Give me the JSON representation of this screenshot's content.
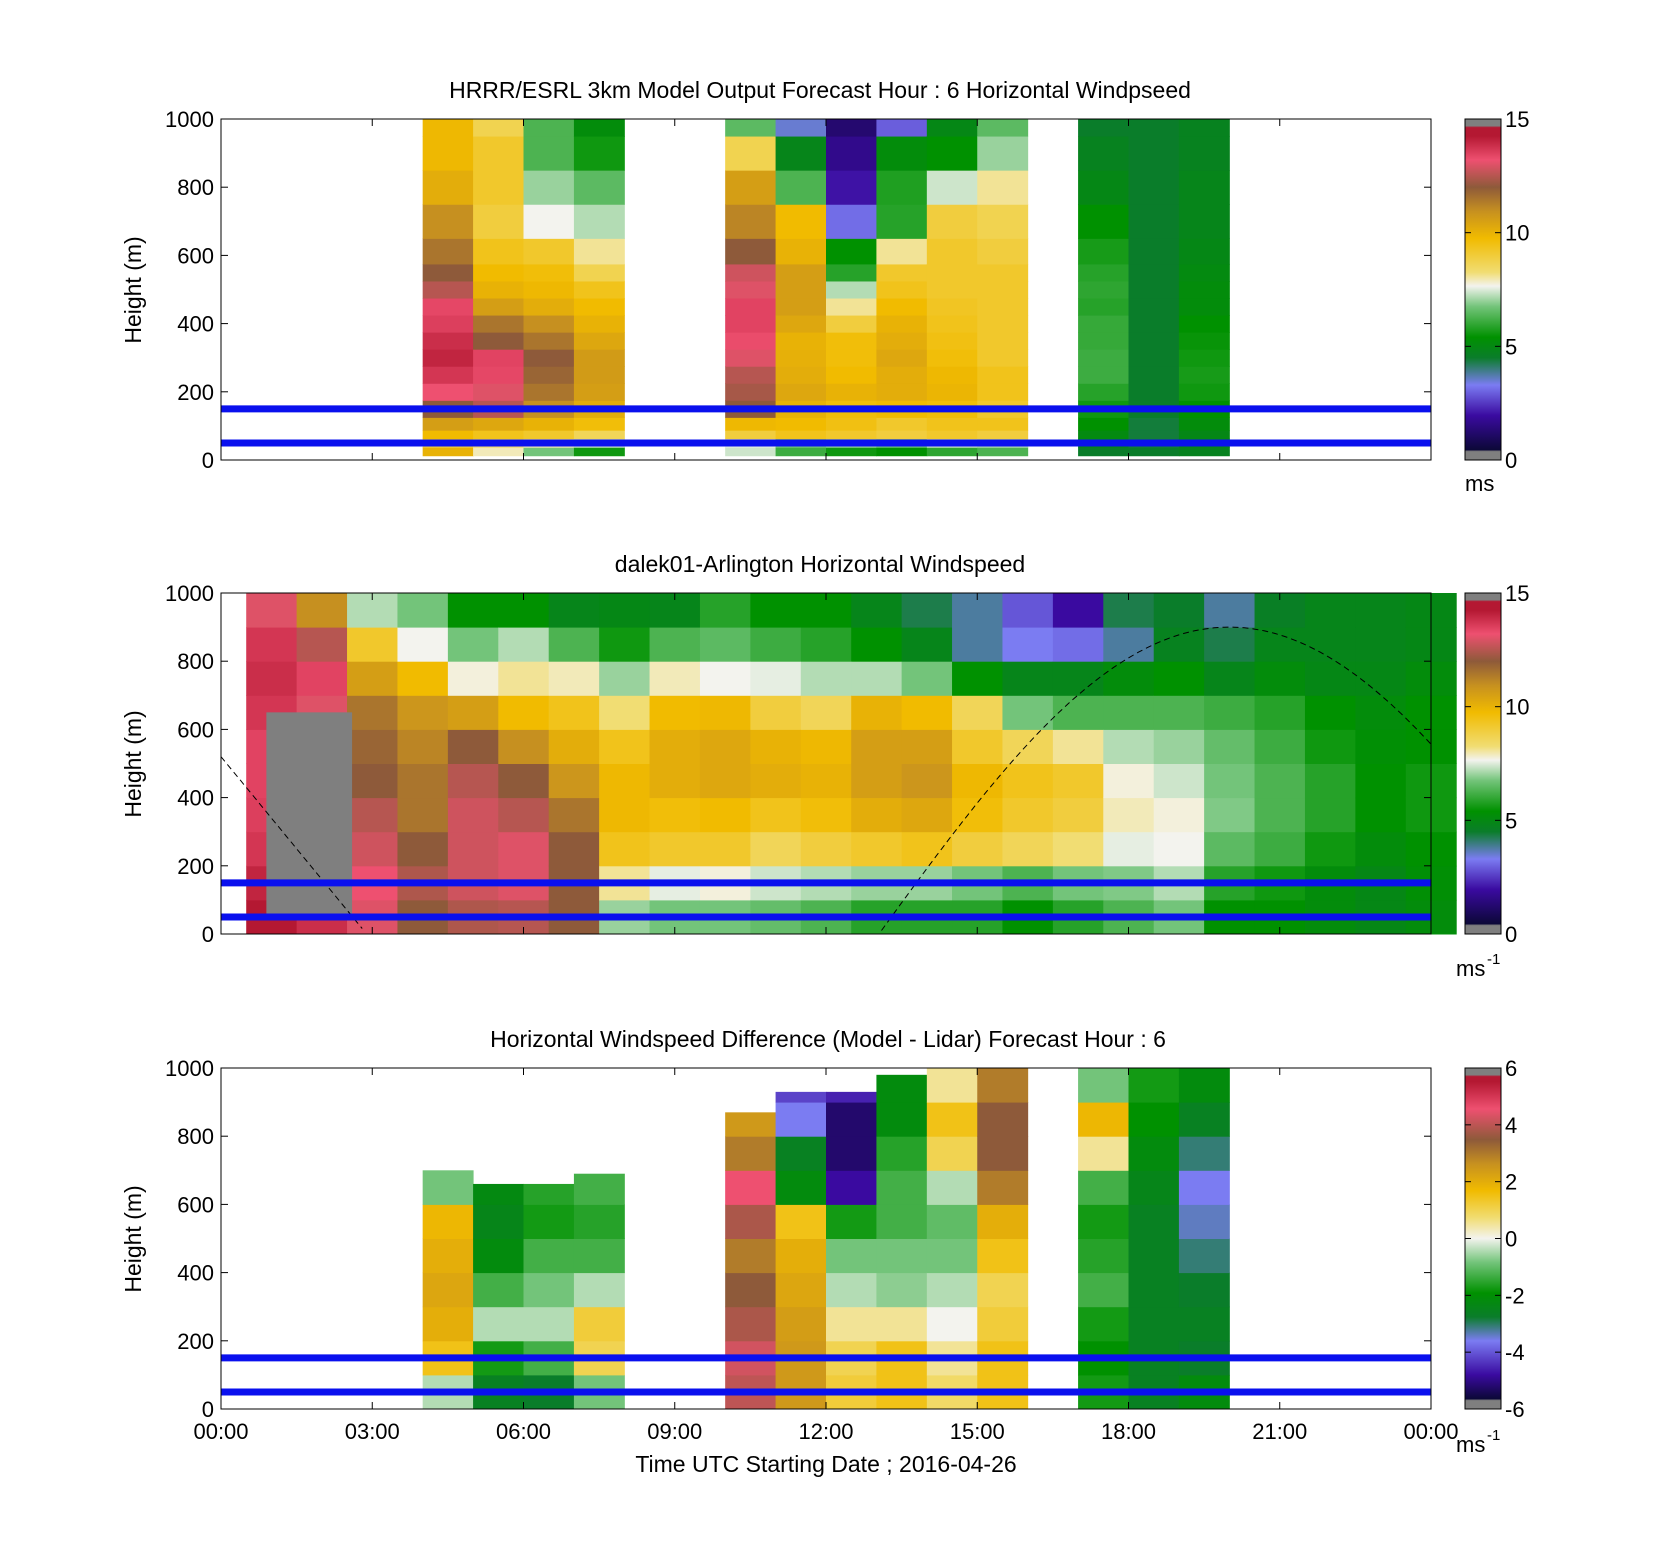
{
  "colors": {
    "lidar_band_lines": "#0a10ee",
    "nodata_gray": "#7f7f7f"
  },
  "x_axis": {
    "ticks": [
      "00:00",
      "03:00",
      "06:00",
      "09:00",
      "12:00",
      "15:00",
      "18:00",
      "21:00",
      "00:00"
    ],
    "label": "Time UTC  Starting Date ; 2016-04-26"
  },
  "panels": [
    {
      "title": "HRRR/ESRL 3km Model Output   Forecast Hour : 6 Horizontal Windpseed",
      "ylabel": "Height (m)",
      "yticks": [
        "0",
        "200",
        "400",
        "600",
        "800",
        "1000"
      ],
      "colorbar": {
        "ticks": [
          "0",
          "5",
          "10",
          "15"
        ],
        "unit": "ms"
      }
    },
    {
      "title": "dalek01-Arlington  Horizontal Windspeed",
      "ylabel": "Height (m)",
      "yticks": [
        "0",
        "200",
        "400",
        "600",
        "800",
        "1000"
      ],
      "colorbar": {
        "ticks": [
          "0",
          "5",
          "10",
          "15"
        ],
        "unit": "ms",
        "unit_exp": "-1"
      }
    },
    {
      "title": "Horizontal Windspeed Difference (Model - Lidar) Forecast Hour : 6",
      "ylabel": "Height (m)",
      "yticks": [
        "0",
        "200",
        "400",
        "600",
        "800",
        "1000"
      ],
      "colorbar": {
        "ticks": [
          "-6",
          "-4",
          "-2",
          "0",
          "2",
          "4",
          "6"
        ],
        "unit": "ms",
        "unit_exp": "-1"
      }
    }
  ],
  "chart_data": [
    {
      "type": "heatmap",
      "title": "HRRR/ESRL 3km Model Output   Forecast Hour : 6 Horizontal Windpseed",
      "ylabel": "Height (m)",
      "xlim": [
        0,
        24
      ],
      "ylim": [
        0,
        1000
      ],
      "clim": [
        0,
        15
      ],
      "colormap": "speed",
      "time_columns_h": [
        4.0,
        5.0,
        6.0,
        7.0,
        10.0,
        11.0,
        12.0,
        13.0,
        14.0,
        15.0,
        17.0,
        18.0,
        19.0
      ],
      "column_width_h": 1.0,
      "heights_m": [
        25,
        50,
        75,
        100,
        150,
        200,
        250,
        300,
        350,
        400,
        450,
        500,
        550,
        600,
        700,
        800,
        900,
        1000
      ],
      "values": [
        [
          9.8,
          8.8,
          9.5,
          10.5,
          12.0,
          13.2,
          13.8,
          14.2,
          14.0,
          13.6,
          13.4,
          12.5,
          12.0,
          11.5,
          11.0,
          10.0,
          9.6,
          9.6
        ],
        [
          7.8,
          8.2,
          9.2,
          10.2,
          12.5,
          13.0,
          13.4,
          13.5,
          12.0,
          11.5,
          10.5,
          9.8,
          9.5,
          9.2,
          8.8,
          9.0,
          9.0,
          8.6
        ],
        [
          6.5,
          7.8,
          9.0,
          9.8,
          11.0,
          11.5,
          11.8,
          12.0,
          11.5,
          11.0,
          10.0,
          9.6,
          9.4,
          9.0,
          7.5,
          6.8,
          6.0,
          6.0
        ],
        [
          5.2,
          7.2,
          8.5,
          9.4,
          10.0,
          10.5,
          10.6,
          10.6,
          10.2,
          9.8,
          9.5,
          9.2,
          8.6,
          8.0,
          7.0,
          6.2,
          5.2,
          4.8
        ],
        [
          7.2,
          7.4,
          8.8,
          9.6,
          12.0,
          12.3,
          12.5,
          13.0,
          13.3,
          13.5,
          13.5,
          13.0,
          12.8,
          12.0,
          11.2,
          10.5,
          8.6,
          6.2
        ],
        [
          5.8,
          6.5,
          9.2,
          9.5,
          9.8,
          10.2,
          10.0,
          9.9,
          9.8,
          10.2,
          10.5,
          10.5,
          10.5,
          9.8,
          9.5,
          6.0,
          4.5,
          3.2
        ],
        [
          5.2,
          6.8,
          9.0,
          9.3,
          9.4,
          9.8,
          9.5,
          9.4,
          9.4,
          8.8,
          8.0,
          7.0,
          5.5,
          5.0,
          2.8,
          1.6,
          1.2,
          0.8
        ],
        [
          5.0,
          6.5,
          8.8,
          9.0,
          9.5,
          10.0,
          10.0,
          10.2,
          10.0,
          9.8,
          9.5,
          9.2,
          9.0,
          8.0,
          5.5,
          5.4,
          4.8,
          2.6
        ],
        [
          5.6,
          7.2,
          9.0,
          9.2,
          9.4,
          9.7,
          9.6,
          9.4,
          9.3,
          9.2,
          9.1,
          9.0,
          9.0,
          9.0,
          8.8,
          7.2,
          5.0,
          4.6
        ],
        [
          6.0,
          7.0,
          8.8,
          9.2,
          9.0,
          9.2,
          9.2,
          9.0,
          9.0,
          9.0,
          9.0,
          9.0,
          9.0,
          8.8,
          8.6,
          8.0,
          6.8,
          6.2
        ],
        [
          4.2,
          4.5,
          4.7,
          5.0,
          5.2,
          5.5,
          5.8,
          5.8,
          5.7,
          5.7,
          5.5,
          5.6,
          5.5,
          5.3,
          5.0,
          4.6,
          4.4,
          4.2
        ],
        [
          4.2,
          4.1,
          4.1,
          4.1,
          4.2,
          4.2,
          4.2,
          4.2,
          4.2,
          4.2,
          4.2,
          4.2,
          4.2,
          4.2,
          4.2,
          4.2,
          4.2,
          4.2
        ],
        [
          4.4,
          4.5,
          4.6,
          4.8,
          5.0,
          5.2,
          5.3,
          5.2,
          5.1,
          5.0,
          4.8,
          4.8,
          4.7,
          4.6,
          4.5,
          4.5,
          4.4,
          4.4
        ]
      ],
      "horizontal_lines_m": [
        50,
        150
      ]
    },
    {
      "type": "heatmap",
      "title": "dalek01-Arlington  Horizontal Windspeed",
      "ylabel": "Height (m)",
      "xlim": [
        0,
        24
      ],
      "ylim": [
        0,
        1000
      ],
      "clim": [
        0,
        15
      ],
      "colormap": "speed",
      "time_columns_h": [
        0.5,
        1.5,
        2.5,
        3.5,
        4.5,
        5.5,
        6.5,
        7.5,
        8.5,
        9.5,
        10.5,
        11.5,
        12.5,
        13.5,
        14.5,
        15.5,
        16.5,
        17.5,
        18.5,
        19.5,
        20.5,
        21.5,
        22.5,
        23.5
      ],
      "column_width_h": 1.0,
      "heights_m": [
        50,
        150,
        250,
        350,
        450,
        550,
        650,
        750,
        850,
        950
      ],
      "values": [
        [
          14.5,
          14.2,
          13.8,
          13.6,
          13.5,
          13.5,
          13.8,
          14.0,
          13.8,
          13.0
        ],
        [
          14.0,
          13.8,
          13.2,
          13.0,
          12.8,
          12.8,
          13.0,
          13.5,
          12.5,
          11.0
        ],
        [
          13.0,
          13.2,
          12.8,
          12.5,
          12.0,
          11.8,
          11.5,
          10.5,
          9.0,
          7.0
        ],
        [
          12.0,
          12.4,
          12.0,
          11.5,
          11.5,
          11.2,
          10.8,
          9.5,
          7.5,
          6.5
        ],
        [
          12.4,
          12.8,
          12.8,
          12.8,
          12.5,
          12.0,
          10.5,
          7.6,
          6.5,
          5.0
        ],
        [
          12.5,
          13.0,
          13.0,
          12.5,
          12.0,
          11.0,
          9.5,
          8.0,
          7.0,
          5.0
        ],
        [
          12.0,
          12.0,
          12.0,
          11.5,
          10.8,
          10.0,
          9.2,
          7.8,
          6.0,
          4.5
        ],
        [
          6.8,
          8.0,
          9.2,
          9.6,
          9.6,
          9.2,
          8.2,
          6.8,
          5.2,
          4.6
        ],
        [
          6.5,
          7.4,
          9.0,
          9.4,
          10.0,
          10.0,
          9.5,
          7.8,
          6.0,
          4.5
        ],
        [
          6.5,
          7.6,
          9.0,
          9.5,
          10.2,
          10.2,
          9.6,
          7.5,
          6.2,
          5.5
        ],
        [
          6.3,
          7.2,
          8.5,
          9.2,
          10.0,
          9.8,
          8.8,
          7.4,
          5.8,
          5.0
        ],
        [
          6.0,
          7.0,
          8.8,
          9.4,
          9.8,
          9.6,
          8.5,
          7.0,
          5.5,
          5.0
        ],
        [
          5.5,
          6.8,
          9.0,
          10.0,
          10.5,
          10.5,
          9.8,
          7.0,
          5.0,
          4.5
        ],
        [
          5.5,
          6.8,
          9.2,
          10.2,
          10.8,
          10.5,
          9.5,
          6.5,
          4.5,
          4.0
        ],
        [
          5.5,
          6.5,
          8.8,
          9.4,
          9.6,
          9.0,
          8.5,
          5.0,
          3.5,
          3.5
        ],
        [
          5.0,
          6.0,
          8.5,
          9.0,
          9.2,
          8.5,
          6.5,
          4.5,
          3.0,
          2.5
        ],
        [
          5.5,
          6.5,
          8.2,
          8.8,
          9.0,
          8.0,
          6.0,
          4.5,
          2.8,
          1.5
        ],
        [
          6.0,
          6.6,
          7.4,
          7.8,
          7.6,
          7.0,
          6.0,
          4.8,
          3.5,
          4.0
        ],
        [
          6.5,
          7.0,
          7.5,
          7.6,
          7.2,
          6.8,
          6.0,
          5.0,
          4.4,
          4.2
        ],
        [
          5.0,
          5.5,
          6.2,
          6.6,
          6.5,
          6.3,
          5.8,
          4.5,
          4.0,
          3.5
        ],
        [
          5.0,
          5.2,
          5.8,
          6.0,
          6.0,
          5.8,
          5.5,
          4.8,
          4.5,
          4.3
        ],
        [
          4.8,
          4.8,
          5.2,
          5.5,
          5.5,
          5.2,
          5.0,
          4.6,
          4.5,
          4.5
        ],
        [
          4.6,
          4.6,
          4.8,
          5.0,
          5.0,
          4.9,
          4.8,
          4.6,
          4.5,
          4.5
        ],
        [
          4.8,
          4.9,
          5.0,
          5.2,
          5.2,
          5.0,
          5.0,
          4.8,
          4.6,
          4.6
        ]
      ],
      "missing_region": {
        "x_h": [
          0.9,
          2.6
        ],
        "y_m": [
          60,
          650
        ]
      },
      "horizontal_lines_m": [
        50,
        150
      ]
    },
    {
      "type": "heatmap",
      "title": "Horizontal Windspeed Difference (Model - Lidar) Forecast Hour : 6",
      "ylabel": "Height (m)",
      "xlim": [
        0,
        24
      ],
      "ylim": [
        0,
        1000
      ],
      "clim": [
        -6,
        6
      ],
      "colormap": "difference",
      "time_columns_h": [
        4.0,
        5.0,
        6.0,
        7.0,
        10.0,
        11.0,
        12.0,
        13.0,
        14.0,
        15.0,
        17.0,
        18.0,
        19.0
      ],
      "column_width_h": 1.0,
      "column_top_m": [
        700,
        660,
        660,
        690,
        870,
        930,
        930,
        980,
        1000,
        1000,
        1000,
        1000,
        1000
      ],
      "heights_m": [
        50,
        150,
        250,
        350,
        450,
        550,
        650,
        750,
        850,
        950
      ],
      "values": [
        [
          -0.5,
          1.5,
          2.0,
          2.2,
          2.0,
          1.8,
          -1.0,
          -0.5,
          null,
          null
        ],
        [
          -3.0,
          -2.0,
          -0.5,
          -1.5,
          -2.5,
          -2.8,
          -2.6,
          null,
          null,
          null
        ],
        [
          -3.2,
          -1.5,
          -0.5,
          -1.0,
          -1.5,
          -2.0,
          -1.8,
          null,
          null,
          null
        ],
        [
          -1.0,
          1.0,
          1.2,
          -0.5,
          -1.5,
          -1.8,
          -1.5,
          null,
          null,
          null
        ],
        [
          4.0,
          4.2,
          3.8,
          3.5,
          3.0,
          3.8,
          4.5,
          3.0,
          2.5,
          null
        ],
        [
          2.5,
          2.5,
          2.4,
          2.2,
          2.0,
          1.5,
          -2.5,
          -3.0,
          -4.0,
          -4.5
        ],
        [
          1.2,
          1.0,
          0.5,
          -0.5,
          -1.0,
          -2.0,
          -5.0,
          -5.5,
          -5.5,
          -4.8
        ],
        [
          1.5,
          1.5,
          0.5,
          -0.8,
          -1.0,
          -1.5,
          -1.5,
          -1.8,
          -2.5,
          -2.5
        ],
        [
          0.8,
          0.5,
          0.0,
          -0.5,
          -1.0,
          -1.2,
          -0.5,
          1.0,
          1.5,
          0.5
        ],
        [
          1.5,
          1.5,
          1.2,
          1.0,
          1.5,
          2.0,
          3.0,
          3.5,
          3.5,
          3.0
        ],
        [
          -2.0,
          -2.2,
          -2.0,
          -1.5,
          -1.8,
          -2.0,
          -1.5,
          0.5,
          1.8,
          -1.0
        ],
        [
          -3.0,
          -3.0,
          -3.0,
          -3.0,
          -3.0,
          -3.0,
          -2.8,
          -2.5,
          -2.2,
          -2.0
        ],
        [
          -2.5,
          -3.2,
          -3.0,
          -3.2,
          -3.5,
          -3.8,
          -4.0,
          -3.5,
          -3.0,
          -2.5
        ]
      ],
      "horizontal_lines_m": [
        50,
        150
      ]
    }
  ]
}
